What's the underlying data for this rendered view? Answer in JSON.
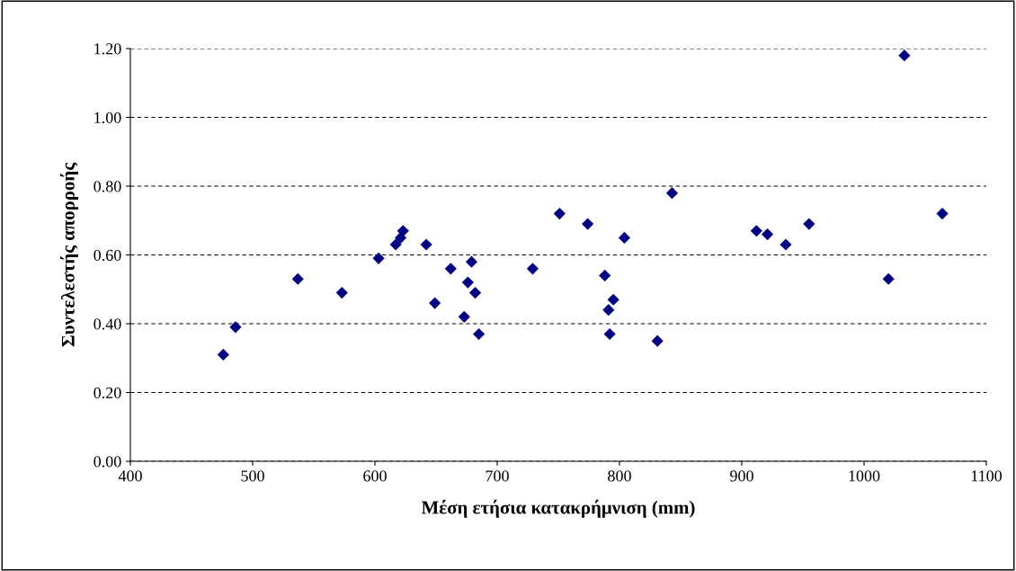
{
  "chart_data": {
    "type": "scatter",
    "xlabel": "Μέση ετήσια κατακρήμνιση (mm)",
    "ylabel": "Συντελεστής απορροής",
    "x": [
      476,
      486,
      537,
      573,
      603,
      617,
      621,
      623,
      642,
      649,
      662,
      673,
      676,
      679,
      682,
      685,
      729,
      751,
      774,
      804,
      788,
      791,
      795,
      792,
      831,
      843,
      912,
      921,
      936,
      955,
      1020,
      1033,
      1064
    ],
    "values": [
      0.31,
      0.39,
      0.53,
      0.49,
      0.59,
      0.63,
      0.65,
      0.67,
      0.63,
      0.46,
      0.56,
      0.42,
      0.52,
      0.58,
      0.49,
      0.37,
      0.56,
      0.72,
      0.69,
      0.65,
      0.54,
      0.44,
      0.47,
      0.37,
      0.35,
      0.78,
      0.67,
      0.66,
      0.63,
      0.69,
      0.53,
      1.18,
      0.72
    ],
    "color": "#000080",
    "marker": "diamond",
    "xlim": [
      400,
      1100
    ],
    "xticks": [
      400,
      500,
      600,
      700,
      800,
      900,
      1000,
      1100
    ],
    "ylim": [
      0,
      1.2
    ],
    "yticks": [
      {
        "value": 0,
        "label": "0.00"
      },
      {
        "value": 0.2,
        "label": "0.20"
      },
      {
        "value": 0.4,
        "label": "0.40"
      },
      {
        "value": 0.6,
        "label": "0.60"
      },
      {
        "value": 0.8,
        "label": "0.80"
      },
      {
        "value": 1.0,
        "label": "1.00"
      },
      {
        "value": 1.2,
        "label": "1.20"
      }
    ],
    "grid": "y",
    "legend": false
  }
}
